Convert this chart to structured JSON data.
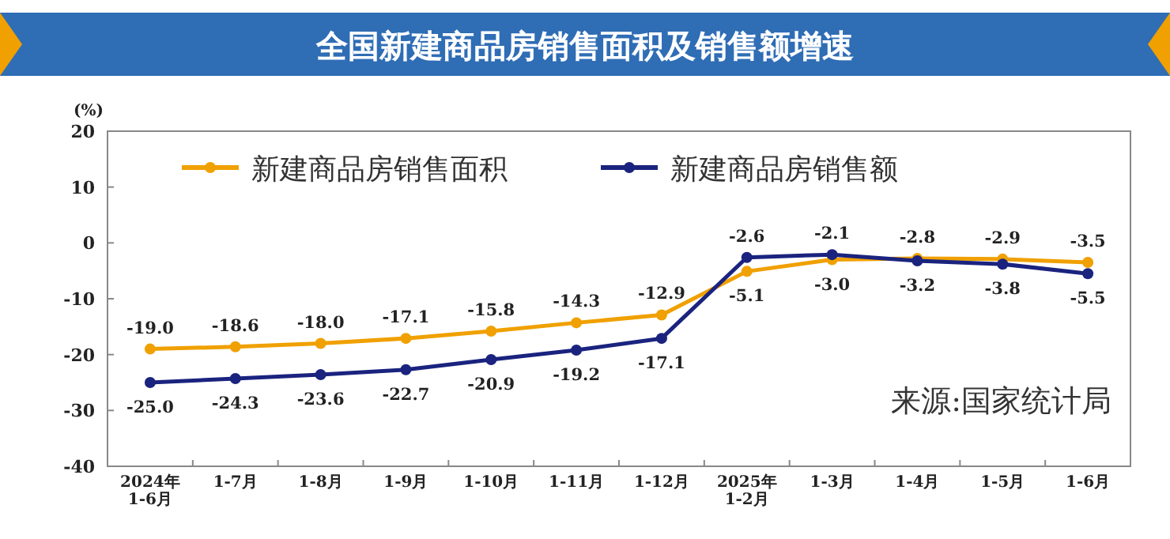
{
  "chart_data": {
    "type": "line",
    "title": "全国新建商品房销售面积及销售额增速",
    "ylabel": "(%)",
    "categories": [
      "2024年\n1-6月",
      "1-7月",
      "1-8月",
      "1-9月",
      "1-10月",
      "1-11月",
      "1-12月",
      "2025年\n1-2月",
      "1-3月",
      "1-4月",
      "1-5月",
      "1-6月"
    ],
    "series": [
      {
        "name": "新建商品房销售面积",
        "color": "#f0a000",
        "values": [
          -19.0,
          -18.6,
          -18.0,
          -17.1,
          -15.8,
          -14.3,
          -12.9,
          -5.1,
          -3.0,
          -2.8,
          -2.9,
          -3.5
        ],
        "value_labels": [
          "-19.0",
          "-18.6",
          "-18.0",
          "-17.1",
          "-15.8",
          "-14.3",
          "-12.9",
          "-5.1",
          "-3.0",
          "-2.8",
          "-2.9",
          "-3.5"
        ]
      },
      {
        "name": "新建商品房销售额",
        "color": "#1a237e",
        "values": [
          -25.0,
          -24.3,
          -23.6,
          -22.7,
          -20.9,
          -19.2,
          -17.1,
          -2.6,
          -2.1,
          -3.2,
          -3.8,
          -5.5
        ],
        "value_labels": [
          "-25.0",
          "-24.3",
          "-23.6",
          "-22.7",
          "-20.9",
          "-19.2",
          "-17.1",
          "-2.6",
          "-2.1",
          "-3.2",
          "-3.8",
          "-5.5"
        ]
      }
    ],
    "ylim": [
      -40,
      20
    ],
    "yticks": [
      -40,
      -30,
      -20,
      -10,
      0,
      10,
      20
    ],
    "legend": "top",
    "marker": "circle",
    "line_style": "solid",
    "annotations": [
      "来源:国家统计局"
    ]
  }
}
